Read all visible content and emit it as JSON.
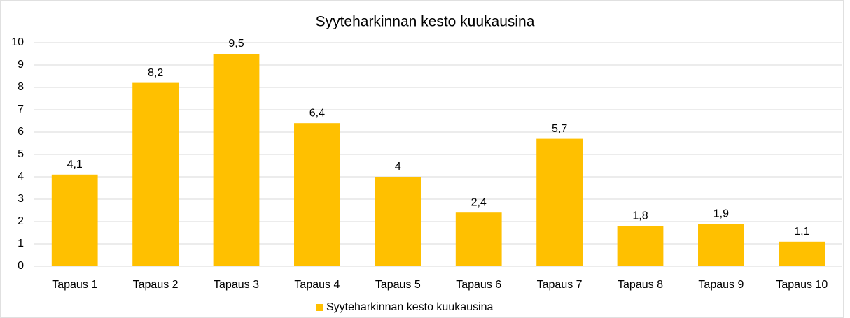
{
  "chart_data": {
    "type": "bar",
    "title": "Syyteharkinnan kesto kuukausina",
    "categories": [
      "Tapaus 1",
      "Tapaus 2",
      "Tapaus 3",
      "Tapaus 4",
      "Tapaus 5",
      "Tapaus 6",
      "Tapaus 7",
      "Tapaus 8",
      "Tapaus 9",
      "Tapaus 10"
    ],
    "series": [
      {
        "name": "Syyteharkinnan kesto kuukausina",
        "color": "#ffc000",
        "values": [
          4.1,
          8.2,
          9.5,
          6.4,
          4,
          2.4,
          5.7,
          1.8,
          1.9,
          1.1
        ],
        "value_labels": [
          "4,1",
          "8,2",
          "9,5",
          "6,4",
          "4",
          "2,4",
          "5,7",
          "1,8",
          "1,9",
          "1,1"
        ]
      }
    ],
    "ylim": [
      0,
      10
    ],
    "yticks": [
      0,
      1,
      2,
      3,
      4,
      5,
      6,
      7,
      8,
      9,
      10
    ],
    "grid": true,
    "legend": "bottom"
  }
}
